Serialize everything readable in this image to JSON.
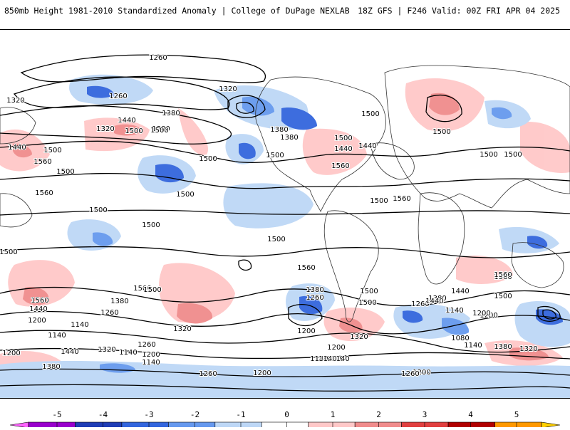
{
  "header": {
    "title": "850mb Height 1981-2010 Standardized Anomaly | College of DuPage NEXLAB",
    "run_info": "18Z GFS | F246 Valid: 00Z FRI APR 04 2025"
  },
  "colorbar": {
    "ticks": [
      "-5",
      "-4",
      "-3",
      "-2",
      "-1",
      "0",
      "1",
      "2",
      "3",
      "4",
      "5"
    ],
    "colors": [
      "#ff66ff",
      "#9900cc",
      "#1f3db5",
      "#3366dd",
      "#6699ee",
      "#bdd7f6",
      "#ffffff",
      "#ffc8c8",
      "#f08c8c",
      "#e04040",
      "#b00000",
      "#ff9900",
      "#ffd000"
    ]
  },
  "contour_labels": [
    "1260",
    "1320",
    "1260",
    "1320",
    "1380",
    "1440",
    "1320",
    "1380",
    "1500",
    "1500",
    "1560",
    "1500",
    "1440",
    "1500",
    "1560",
    "1500",
    "1380",
    "1380",
    "1500",
    "1440",
    "1440",
    "1500",
    "1500",
    "1560",
    "1500",
    "1560",
    "1500",
    "1500",
    "1500",
    "1500",
    "1500",
    "1500",
    "1500",
    "1500",
    "1500",
    "1560",
    "1500",
    "1500",
    "1560",
    "1500",
    "1440",
    "1380",
    "1380",
    "1260",
    "1560",
    "1440",
    "1500",
    "1380",
    "1260",
    "1200",
    "1200",
    "1140",
    "1140",
    "1440",
    "1320",
    "1320",
    "1320",
    "1260",
    "1200",
    "1140",
    "1260",
    "1140",
    "1200",
    "1320",
    "1200",
    "1140",
    "1380",
    "1440",
    "1200",
    "1260",
    "1140",
    "1140",
    "1200",
    "1140",
    "1200",
    "1140",
    "1320",
    "1380",
    "1260",
    "1200",
    "1080",
    "1140",
    "1560"
  ]
}
